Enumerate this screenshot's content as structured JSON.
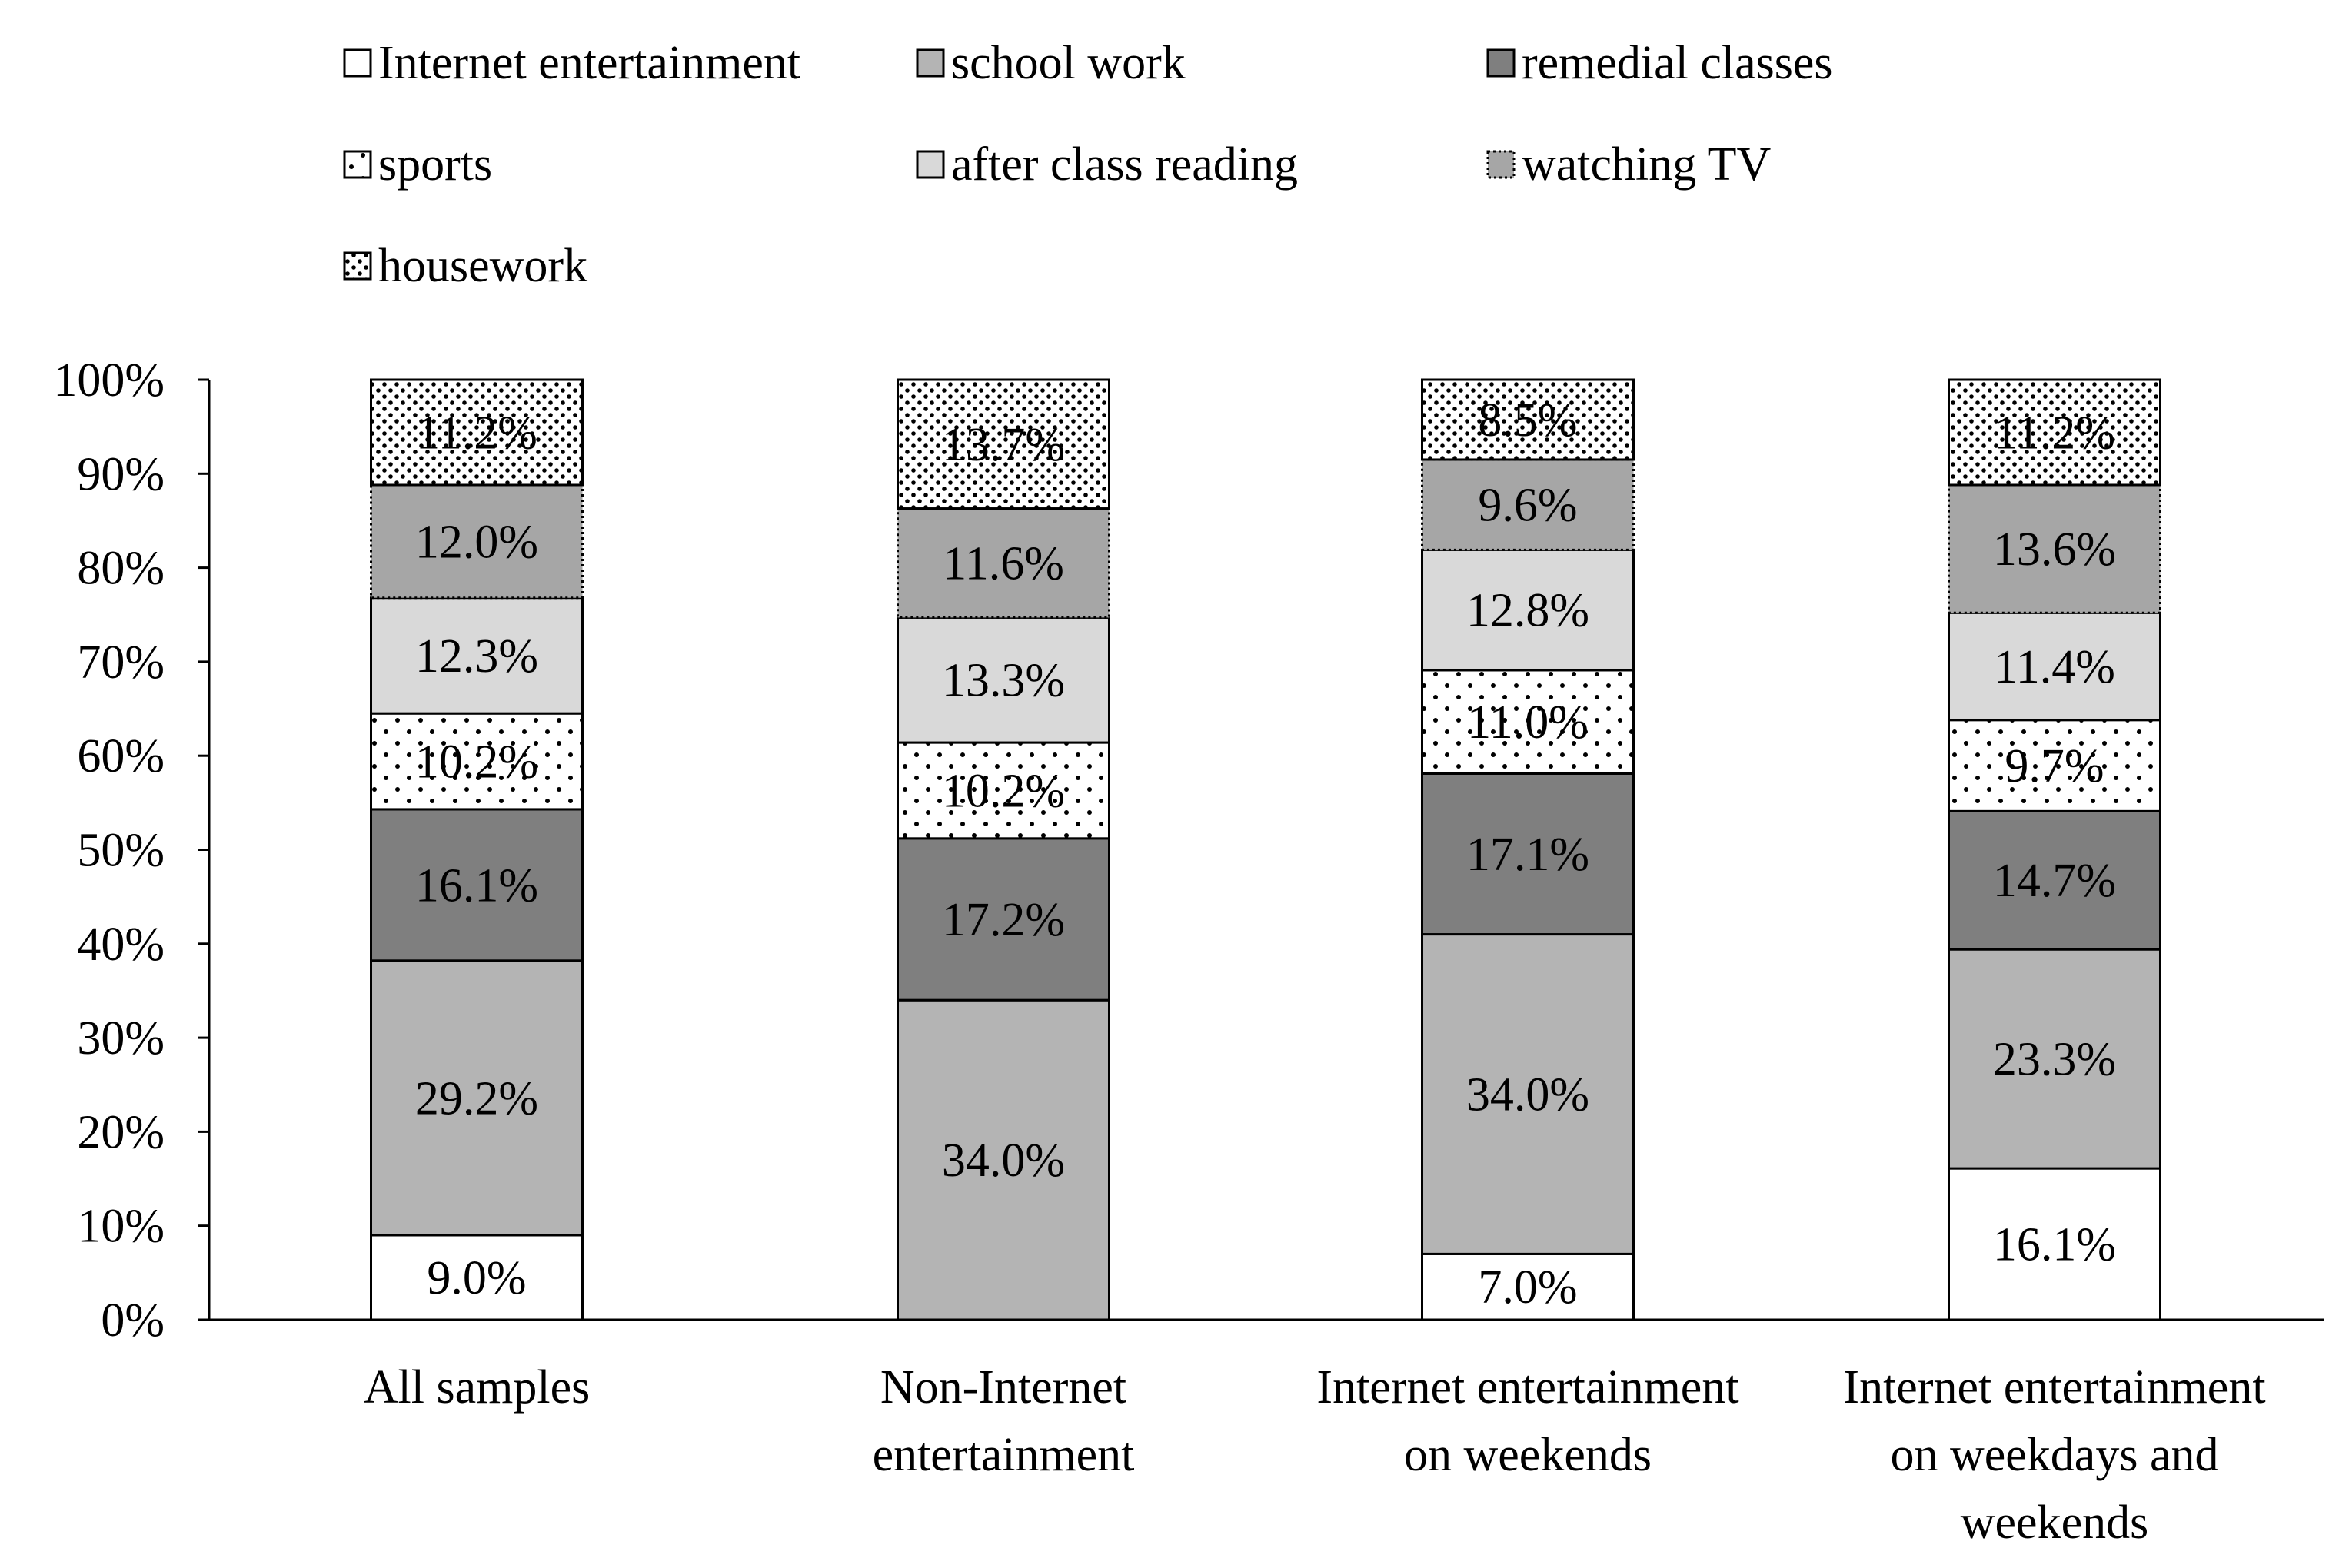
{
  "chart_data": {
    "type": "bar",
    "stacked": true,
    "categories": [
      [
        "All samples"
      ],
      [
        "Non-Internet",
        "entertainment"
      ],
      [
        "Internet entertainment",
        "on weekends"
      ],
      [
        "Internet entertainment",
        "on weekdays and",
        "weekends"
      ]
    ],
    "series": [
      {
        "name": "Internet entertainment",
        "values": [
          9.0,
          0,
          7.0,
          16.1
        ],
        "labels": [
          "9.0%",
          "",
          "7.0%",
          "16.1%"
        ],
        "fill": "#ffffff",
        "pattern": "solid",
        "border": "solid"
      },
      {
        "name": "school work",
        "values": [
          29.2,
          34.0,
          34.0,
          23.3
        ],
        "labels": [
          "29.2%",
          "34.0%",
          "34.0%",
          "23.3%"
        ],
        "fill": "#b4b4b4",
        "pattern": "solid",
        "border": "solid"
      },
      {
        "name": "remedial classes",
        "values": [
          16.1,
          17.2,
          17.1,
          14.7
        ],
        "labels": [
          "16.1%",
          "17.2%",
          "17.1%",
          "14.7%"
        ],
        "fill": "#7f7f7f",
        "pattern": "solid",
        "border": "solid"
      },
      {
        "name": "sports",
        "values": [
          10.2,
          10.2,
          11.0,
          9.7
        ],
        "labels": [
          "10.2%",
          "10.2%",
          "11.0%",
          "9.7%"
        ],
        "fill": "#ffffff",
        "pattern": "sparse-dots",
        "border": "solid"
      },
      {
        "name": "after class reading",
        "values": [
          12.3,
          13.3,
          12.8,
          11.4
        ],
        "labels": [
          "12.3%",
          "13.3%",
          "12.8%",
          "11.4%"
        ],
        "fill": "#d9d9d9",
        "pattern": "solid",
        "border": "solid"
      },
      {
        "name": "watching TV",
        "values": [
          12.0,
          11.6,
          9.6,
          13.6
        ],
        "labels": [
          "12.0%",
          "11.6%",
          "9.6%",
          "13.6%"
        ],
        "fill": "#a6a6a6",
        "pattern": "solid",
        "border": "dotted"
      },
      {
        "name": "housework",
        "values": [
          11.2,
          13.7,
          8.5,
          11.2
        ],
        "labels": [
          "11.2%",
          "13.7%",
          "8.5%",
          "11.2%"
        ],
        "fill": "#ffffff",
        "pattern": "dense-dots",
        "border": "solid"
      }
    ],
    "yticks": [
      "0%",
      "10%",
      "20%",
      "30%",
      "40%",
      "50%",
      "60%",
      "70%",
      "80%",
      "90%",
      "100%"
    ],
    "ylim": [
      0,
      100
    ],
    "legend_position": "top",
    "grid": false
  }
}
